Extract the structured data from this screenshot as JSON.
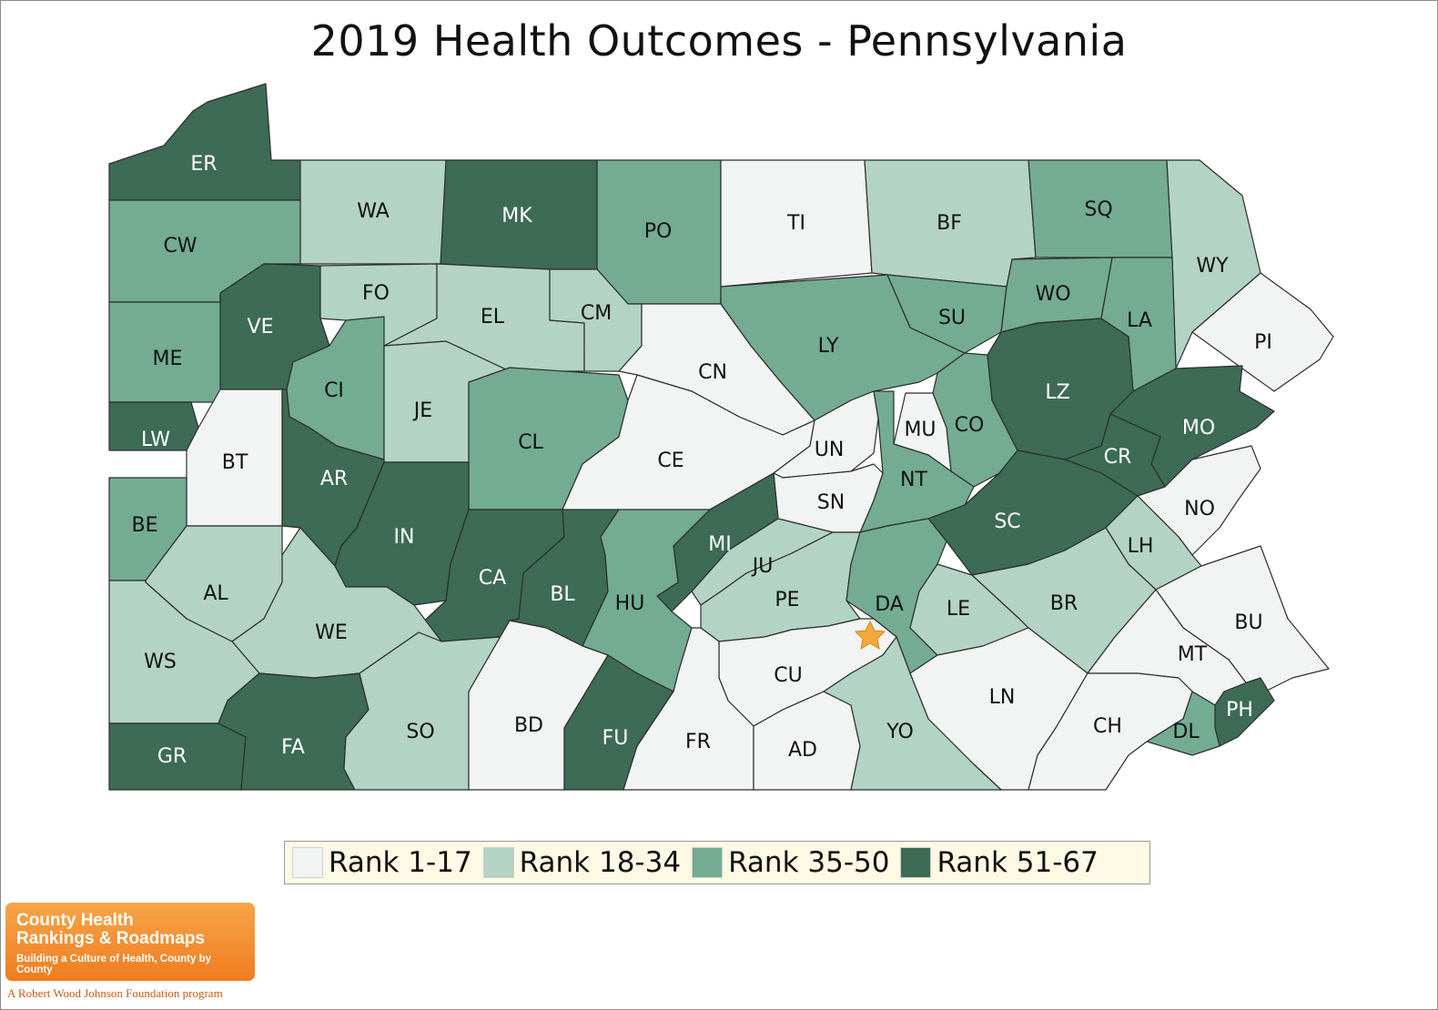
{
  "title": "2019 Health Outcomes - Pennsylvania",
  "colors": {
    "rank_1_17": "#f2f4f3",
    "rank_18_34": "#b3d3c4",
    "rank_35_50": "#73ac92",
    "rank_51_67": "#3d6b55",
    "border": "#2d2d2d",
    "capital_star": "#f5a93a"
  },
  "legend": [
    {
      "label": "Rank 1-17",
      "color": "#f2f4f3"
    },
    {
      "label": "Rank 18-34",
      "color": "#b3d3c4"
    },
    {
      "label": "Rank 35-50",
      "color": "#73ac92"
    },
    {
      "label": "Rank 51-67",
      "color": "#3d6b55"
    }
  ],
  "counties": [
    {
      "abbr": "ER",
      "tier": 4
    },
    {
      "abbr": "WA",
      "tier": 2
    },
    {
      "abbr": "MK",
      "tier": 4
    },
    {
      "abbr": "PO",
      "tier": 3
    },
    {
      "abbr": "TI",
      "tier": 1
    },
    {
      "abbr": "BF",
      "tier": 2
    },
    {
      "abbr": "SQ",
      "tier": 3
    },
    {
      "abbr": "WY",
      "tier": 2
    },
    {
      "abbr": "CW",
      "tier": 3
    },
    {
      "abbr": "VE",
      "tier": 4
    },
    {
      "abbr": "FO",
      "tier": 2
    },
    {
      "abbr": "EL",
      "tier": 2
    },
    {
      "abbr": "CM",
      "tier": 2
    },
    {
      "abbr": "CN",
      "tier": 1
    },
    {
      "abbr": "LY",
      "tier": 3
    },
    {
      "abbr": "SU",
      "tier": 3
    },
    {
      "abbr": "WO",
      "tier": 3
    },
    {
      "abbr": "LA",
      "tier": 3
    },
    {
      "abbr": "PI",
      "tier": 1
    },
    {
      "abbr": "ME",
      "tier": 3
    },
    {
      "abbr": "CI",
      "tier": 3
    },
    {
      "abbr": "JE",
      "tier": 2
    },
    {
      "abbr": "CL",
      "tier": 3
    },
    {
      "abbr": "CE",
      "tier": 1
    },
    {
      "abbr": "MU",
      "tier": 1
    },
    {
      "abbr": "CO",
      "tier": 3
    },
    {
      "abbr": "LZ",
      "tier": 4
    },
    {
      "abbr": "MO",
      "tier": 4
    },
    {
      "abbr": "CR",
      "tier": 4
    },
    {
      "abbr": "LW",
      "tier": 4
    },
    {
      "abbr": "BT",
      "tier": 1
    },
    {
      "abbr": "AR",
      "tier": 4
    },
    {
      "abbr": "UN",
      "tier": 1
    },
    {
      "abbr": "NT",
      "tier": 3
    },
    {
      "abbr": "SN",
      "tier": 1
    },
    {
      "abbr": "BE",
      "tier": 3
    },
    {
      "abbr": "IN",
      "tier": 4
    },
    {
      "abbr": "SC",
      "tier": 4
    },
    {
      "abbr": "NO",
      "tier": 1
    },
    {
      "abbr": "LH",
      "tier": 2
    },
    {
      "abbr": "AL",
      "tier": 2
    },
    {
      "abbr": "CA",
      "tier": 4
    },
    {
      "abbr": "BL",
      "tier": 4
    },
    {
      "abbr": "MI",
      "tier": 4
    },
    {
      "abbr": "JU",
      "tier": 2
    },
    {
      "abbr": "HU",
      "tier": 3
    },
    {
      "abbr": "PE",
      "tier": 2
    },
    {
      "abbr": "DA",
      "tier": 3
    },
    {
      "abbr": "LE",
      "tier": 2
    },
    {
      "abbr": "BR",
      "tier": 2
    },
    {
      "abbr": "BU",
      "tier": 1
    },
    {
      "abbr": "WE",
      "tier": 2
    },
    {
      "abbr": "WS",
      "tier": 2
    },
    {
      "abbr": "MT",
      "tier": 1
    },
    {
      "abbr": "CU",
      "tier": 1
    },
    {
      "abbr": "LN",
      "tier": 1
    },
    {
      "abbr": "PH",
      "tier": 4
    },
    {
      "abbr": "CH",
      "tier": 1
    },
    {
      "abbr": "DL",
      "tier": 3
    },
    {
      "abbr": "GR",
      "tier": 4
    },
    {
      "abbr": "FA",
      "tier": 4
    },
    {
      "abbr": "SO",
      "tier": 2
    },
    {
      "abbr": "BD",
      "tier": 1
    },
    {
      "abbr": "FU",
      "tier": 4
    },
    {
      "abbr": "FR",
      "tier": 1
    },
    {
      "abbr": "AD",
      "tier": 1
    },
    {
      "abbr": "YO",
      "tier": 2
    }
  ],
  "logo": {
    "line1": "County Health",
    "line2": "Rankings & Roadmaps",
    "tagline": "Building a Culture of Health, County by County",
    "sub": "A Robert Wood Johnson Foundation program"
  }
}
